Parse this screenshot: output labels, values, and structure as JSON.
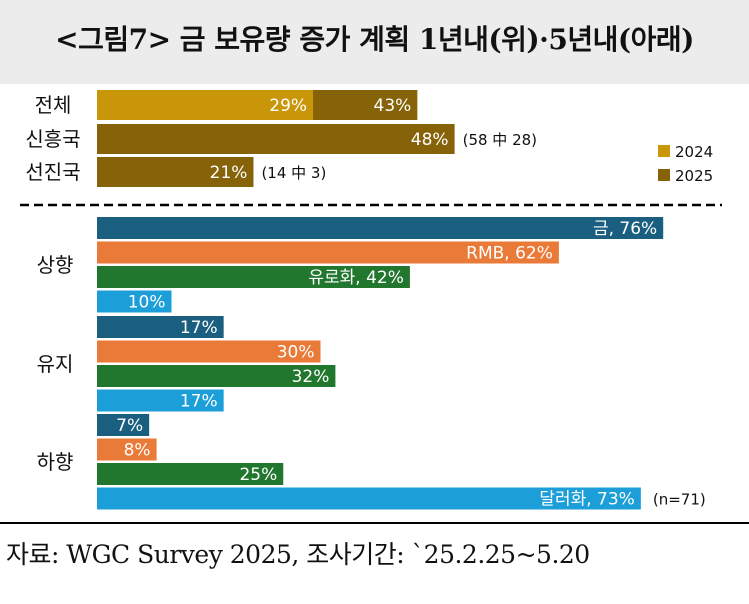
{
  "header": {
    "title": "<그림7> 금 보유량 증가 계획 1년내(위)·5년내(아래)"
  },
  "footer": {
    "source": "자료: WGC Survey 2025,  조사기간: `25.2.25~5.20"
  },
  "colors": {
    "c2024": "#c9960a",
    "c2025": "#866208",
    "gold_bar": "#1a5f80",
    "rmb_bar": "#ea7a37",
    "euro_bar": "#22772f",
    "dollar_bar": "#1c9fd8"
  },
  "chart_data": [
    {
      "type": "bar",
      "orientation": "horizontal",
      "categories": [
        "전체",
        "신흥국",
        "선진국"
      ],
      "series": [
        {
          "name": "2024",
          "values": [
            29,
            null,
            null
          ],
          "labels": [
            "29%",
            null,
            null
          ]
        },
        {
          "name": "2025",
          "values": [
            43,
            48,
            21
          ],
          "labels": [
            "43%",
            "48%",
            "21%"
          ]
        }
      ],
      "annotations": [
        {
          "category": "신흥국",
          "text": "(58 中 28)"
        },
        {
          "category": "선진국",
          "text": "(14 中 3)"
        }
      ],
      "legend": [
        "2024",
        "2025"
      ],
      "legend_position": "right"
    },
    {
      "type": "bar",
      "orientation": "horizontal",
      "groups": [
        {
          "label": "상향",
          "bars": [
            {
              "key": "gold_bar",
              "value": 76,
              "label": "금, 76%"
            },
            {
              "key": "rmb_bar",
              "value": 62,
              "label": "RMB, 62%"
            },
            {
              "key": "euro_bar",
              "value": 42,
              "label": "유로화, 42%"
            },
            {
              "key": "dollar_bar",
              "value": 10,
              "label": "10%"
            }
          ]
        },
        {
          "label": "유지",
          "bars": [
            {
              "key": "gold_bar",
              "value": 17,
              "label": "17%"
            },
            {
              "key": "rmb_bar",
              "value": 30,
              "label": "30%"
            },
            {
              "key": "euro_bar",
              "value": 32,
              "label": "32%"
            },
            {
              "key": "dollar_bar",
              "value": 17,
              "label": "17%"
            }
          ]
        },
        {
          "label": "하향",
          "bars": [
            {
              "key": "gold_bar",
              "value": 7,
              "label": "7%"
            },
            {
              "key": "rmb_bar",
              "value": 8,
              "label": "8%"
            },
            {
              "key": "euro_bar",
              "value": 25,
              "label": "25%"
            },
            {
              "key": "dollar_bar",
              "value": 73,
              "label": "달러화, 73%"
            }
          ]
        }
      ],
      "annotation": "(n=71)"
    }
  ]
}
